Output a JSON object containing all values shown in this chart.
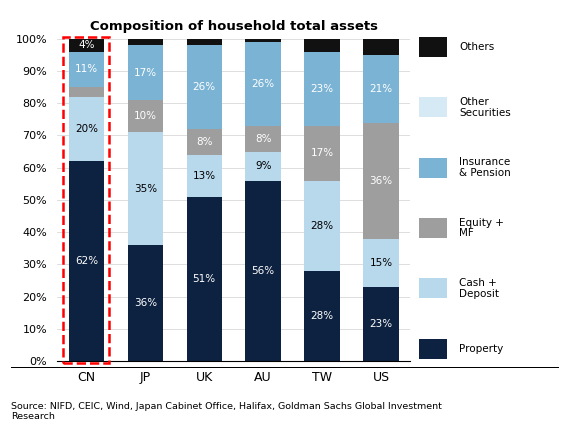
{
  "title": "Composition of household total assets",
  "categories": [
    "CN",
    "JP",
    "UK",
    "AU",
    "TW",
    "US"
  ],
  "series": {
    "Property": [
      62,
      36,
      51,
      56,
      28,
      23
    ],
    "Cash + Deposit": [
      20,
      35,
      13,
      9,
      28,
      15
    ],
    "Equity + MF": [
      3,
      10,
      8,
      8,
      17,
      36
    ],
    "Insurance & Pension": [
      11,
      17,
      26,
      26,
      23,
      21
    ],
    "Other Securities": [
      0,
      0,
      0,
      0,
      0,
      0
    ],
    "Others": [
      4,
      2,
      2,
      1,
      4,
      5
    ]
  },
  "labels": {
    "Property": [
      "62%",
      "36%",
      "51%",
      "56%",
      "28%",
      "23%"
    ],
    "Cash + Deposit": [
      "20%",
      "35%",
      "13%",
      "9%",
      "28%",
      "15%"
    ],
    "Equity + MF": [
      "",
      "10%",
      "8%",
      "8%",
      "17%",
      "36%"
    ],
    "Insurance & Pension": [
      "11%",
      "17%",
      "26%",
      "26%",
      "23%",
      "21%"
    ],
    "Other Securities": [
      "",
      "",
      "",
      "",
      "",
      ""
    ],
    "Others": [
      "4%",
      "",
      "",
      "",
      "",
      ""
    ]
  },
  "colors": {
    "Property": "#0d2240",
    "Cash + Deposit": "#b8d8ec",
    "Equity + MF": "#9e9e9e",
    "Insurance & Pension": "#7ab3d4",
    "Other Securities": "#d6eaf5",
    "Others": "#111111"
  },
  "legend_order": [
    "Others",
    "Other\nSecurities",
    "Insurance\n& Pension",
    "Equity +\nMF",
    "Cash +\nDeposit",
    "Property"
  ],
  "legend_keys": [
    "Others",
    "Other Securities",
    "Insurance & Pension",
    "Equity + MF",
    "Cash + Deposit",
    "Property"
  ],
  "source_text": "Source: NIFD, CEIC, Wind, Japan Cabinet Office, Halifax, Goldman Sachs Global Investment\nResearch",
  "ylim": [
    0,
    100
  ],
  "yticks": [
    0,
    10,
    20,
    30,
    40,
    50,
    60,
    70,
    80,
    90,
    100
  ],
  "yticklabels": [
    "0%",
    "10%",
    "20%",
    "30%",
    "40%",
    "50%",
    "60%",
    "70%",
    "80%",
    "90%",
    "100%"
  ]
}
